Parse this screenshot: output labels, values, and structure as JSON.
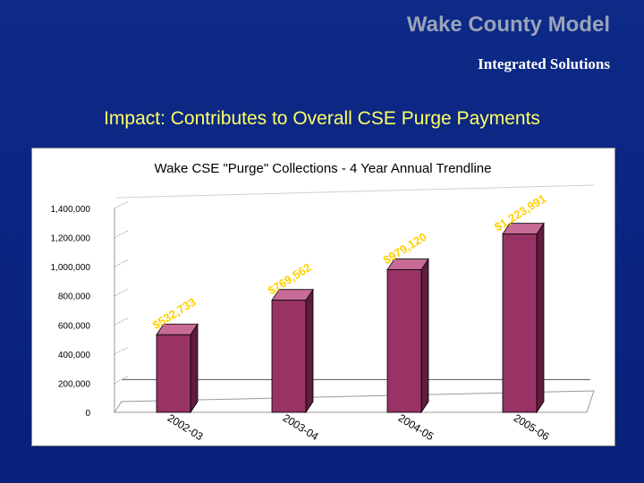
{
  "slide": {
    "title": "Wake County Model",
    "subtitle": "Integrated Solutions",
    "headline": "Impact: Contributes to Overall CSE Purge Payments"
  },
  "colors": {
    "background": "#0a2480",
    "bar_front": "#993366",
    "bar_side": "#5e1d3c",
    "bar_top": "#c86b96",
    "data_label": "#ffd000",
    "title_gray": "#9aa3b8",
    "headline_yellow": "#ffff66"
  },
  "chart_data": {
    "type": "bar",
    "title": "Wake CSE \"Purge\" Collections - 4 Year Annual Trendline",
    "categories": [
      "2002-03",
      "2003-04",
      "2004-05",
      "2005-06"
    ],
    "values": [
      532733,
      769562,
      979120,
      1223991
    ],
    "data_labels": [
      "$532,733",
      "$769,562",
      "$979,120",
      "$1,223,991"
    ],
    "yticks": [
      "0",
      "200,000",
      "400,000",
      "600,000",
      "800,000",
      "1,000,000",
      "1,200,000",
      "1,400,000"
    ],
    "ylim": [
      0,
      1400000
    ],
    "grid": true,
    "legend": "none",
    "xlabel": "",
    "ylabel": ""
  }
}
